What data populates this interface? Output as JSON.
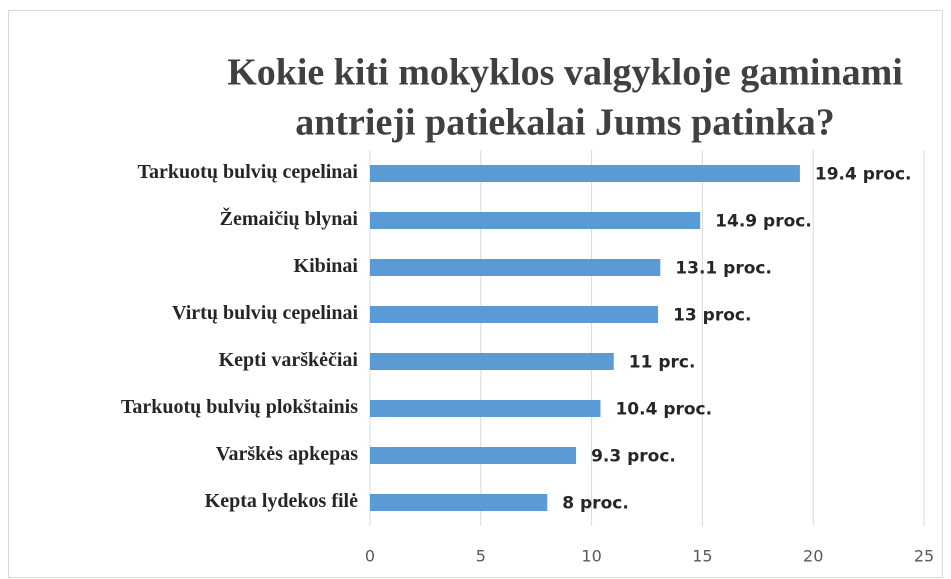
{
  "chart_data": {
    "type": "barh",
    "title": [
      "Kokie kiti mokyklos valgykloje gaminami",
      "antrieji patiekalai Jums patinka?"
    ],
    "categories": [
      "Tarkuotų bulvių cepelinai",
      "Žemaičių blynai",
      "Kibinai",
      "Virtų bulvių cepelinai",
      "Kepti varškėčiai",
      "Tarkuotų bulvių plokštainis",
      "Varškės apkepas",
      "Kepta lydekos filė"
    ],
    "values": [
      19.4,
      14.9,
      13.1,
      13,
      11,
      10.4,
      9.3,
      8
    ],
    "value_labels": [
      "19.4 proc.",
      "14.9 proc.",
      "13.1 proc.",
      "13 proc.",
      "11 prc.",
      "10.4 proc.",
      "9.3 proc.",
      "8 proc."
    ],
    "color": "#5b9bd5",
    "xlim": [
      0,
      25
    ],
    "xticks": [
      0,
      5,
      10,
      15,
      20,
      25
    ],
    "grid": true
  }
}
